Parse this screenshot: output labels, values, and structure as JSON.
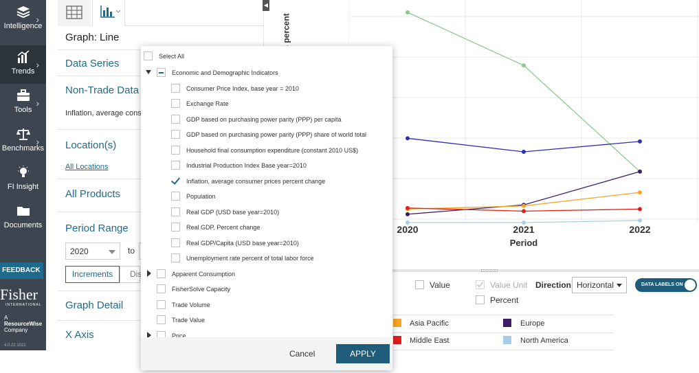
{
  "nav": {
    "items": [
      {
        "label": "Intelligence",
        "icon": "layers-icon",
        "has_chevron": true
      },
      {
        "label": "Trends",
        "icon": "bar-chart-icon",
        "has_chevron": true,
        "active": true
      },
      {
        "label": "Tools",
        "icon": "briefcase-icon",
        "has_chevron": true
      },
      {
        "label": "Benchmarks",
        "icon": "scale-icon",
        "has_chevron": true
      },
      {
        "label": "FI Insight",
        "icon": "lightbulb-icon",
        "has_chevron": false
      },
      {
        "label": "Documents",
        "icon": "folder-icon",
        "has_chevron": false
      }
    ],
    "feedback": "FEEDBACK",
    "logo_name": "Fisher",
    "logo_sub": "INTERNATIONAL",
    "resourcewise_a": "A",
    "resourcewise_name": "ResourceWise",
    "resourcewise_company": "Company",
    "version": "4.0.22.1022"
  },
  "panel": {
    "graph_type": "Graph: Line",
    "data_series": "Data Series",
    "non_trade_data": "Non-Trade Data",
    "selected_indicator": "Inflation, average consu",
    "locations_heading": "Location(s)",
    "all_locations": "All Locations",
    "all_products": "All Products",
    "period_range": "Period Range",
    "period_from": "2020",
    "to_label": "to",
    "increments": "Increments",
    "display": "Dis",
    "graph_detail": "Graph Detail",
    "x_axis": "X Axis"
  },
  "dropdown": {
    "select_all": "Select All",
    "groups": [
      {
        "label": "Economic and Demographic Indicators",
        "expanded": true,
        "state": "partial",
        "children": [
          {
            "label": "Consumer Price Index, base year = 2010",
            "checked": false
          },
          {
            "label": "Exchange Rate",
            "checked": false
          },
          {
            "label": "GDP based on purchasing power parity (PPP) per capita",
            "checked": false
          },
          {
            "label": "GDP based on purchasing power parity (PPP) share of world total",
            "checked": false
          },
          {
            "label": "Household final consumption expenditure (constant 2010 US$)",
            "checked": false
          },
          {
            "label": "Industrial Production Index Base year=2010",
            "checked": false
          },
          {
            "label": "Inflation, average consumer prices percent change",
            "checked": true
          },
          {
            "label": "Population",
            "checked": false
          },
          {
            "label": "Real GDP (USD base year=2010)",
            "checked": false
          },
          {
            "label": "Real GDP, Percent change",
            "checked": false
          },
          {
            "label": "Real GDP/Capita (USD base year=2010)",
            "checked": false
          },
          {
            "label": "Unemployment rate percent of total labor force",
            "checked": false
          }
        ]
      },
      {
        "label": "Apparent Consumption",
        "expandable": true
      },
      {
        "label": "FisherSolve Capacity",
        "expandable": false
      },
      {
        "label": "Trade Volume",
        "expandable": false
      },
      {
        "label": "Trade Value",
        "expandable": false
      },
      {
        "label": "Price",
        "expandable": true
      }
    ],
    "cancel": "Cancel",
    "apply": "APPLY"
  },
  "chart_data": {
    "type": "line",
    "ylabel_visible": "s percent",
    "xlabel": "Period",
    "categories": [
      "2020",
      "2021",
      "2022"
    ],
    "grid": true,
    "series": [
      {
        "name": "",
        "color": "#8cc98f",
        "values": [
          1.0,
          0.745,
          0.235
        ]
      },
      {
        "name": "",
        "color": "#2e2fb5",
        "values": [
          0.395,
          0.33,
          0.38
        ]
      },
      {
        "name": "Europe",
        "color": "#3d1d63",
        "values": [
          0.03,
          0.075,
          0.235
        ]
      },
      {
        "name": "Asia Pacific",
        "color": "#f5a623",
        "values": [
          0.055,
          0.07,
          0.135
        ]
      },
      {
        "name": "Middle East",
        "color": "#e0201c",
        "values": [
          0.06,
          0.045,
          0.055
        ]
      },
      {
        "name": "North America",
        "color": "#a8cde6",
        "values": [
          -0.01,
          -0.01,
          0.0
        ]
      }
    ]
  },
  "controls": {
    "value": "Value",
    "value_unit": "Value Unit",
    "direction": "Direction",
    "direction_value": "Horizontal",
    "percent": "Percent",
    "data_labels": "DATA LABELS ON"
  },
  "legend": [
    {
      "label": "Asia Pacific",
      "color": "#f5a623"
    },
    {
      "label": "Europe",
      "color": "#3d1d63"
    },
    {
      "label": "Middle East",
      "color": "#e0201c"
    },
    {
      "label": "North America",
      "color": "#a8cde6"
    }
  ]
}
